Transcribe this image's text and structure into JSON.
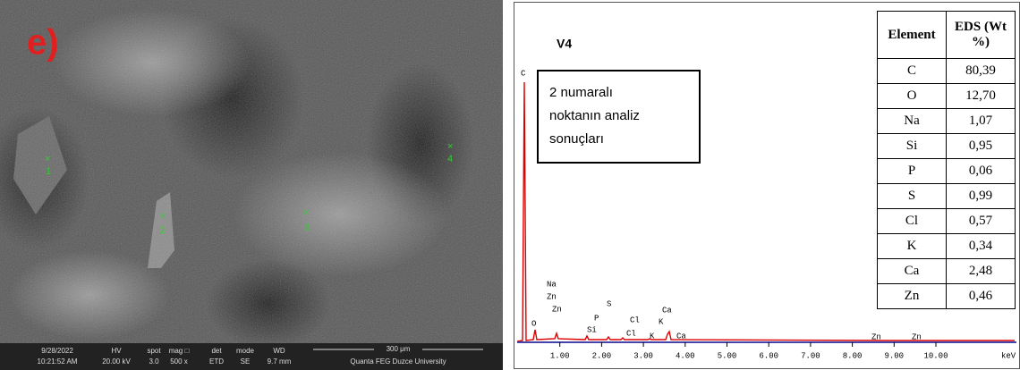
{
  "sem": {
    "panel_label": "e)",
    "points": [
      "1",
      "2",
      "3",
      "4"
    ],
    "info": {
      "date": "9/28/2022",
      "time": "10:21:52 AM",
      "hv": [
        "HV",
        "20.00 kV"
      ],
      "spot": [
        "spot",
        "3.0"
      ],
      "mag": [
        "mag □",
        "500 x"
      ],
      "det": [
        "det",
        "ETD"
      ],
      "mode": [
        "mode",
        "SE"
      ],
      "wd": [
        "WD",
        "9.7 mm"
      ],
      "scale": "300 μm",
      "lab": "Quanta FEG Duzce University"
    }
  },
  "eds": {
    "sample": "V4",
    "note": [
      "2 numaralı",
      "noktanın analiz",
      "sonuçları"
    ],
    "peak_labels": [
      "C",
      "O",
      "Na",
      "Zn",
      "Zn",
      "Si",
      "P",
      "S",
      "Cl",
      "Cl",
      "K",
      "Ca",
      "K",
      "Ca",
      "Zn",
      "Zn"
    ],
    "xticks": [
      {
        "value": 1,
        "label": "1.00"
      },
      {
        "value": 2,
        "label": "2.00"
      },
      {
        "value": 3,
        "label": "3.00"
      },
      {
        "value": 4,
        "label": "4.00"
      },
      {
        "value": 5,
        "label": "5.00"
      },
      {
        "value": 6,
        "label": "6.00"
      },
      {
        "value": 7,
        "label": "7.00"
      },
      {
        "value": 8,
        "label": "8.00"
      },
      {
        "value": 9,
        "label": "9.00"
      },
      {
        "value": 10,
        "label": "10.00"
      }
    ],
    "unit": "keV",
    "table": {
      "header": [
        "Element",
        "EDS (Wt %)"
      ],
      "rows": [
        [
          "C",
          "80,39"
        ],
        [
          "O",
          "12,70"
        ],
        [
          "Na",
          "1,07"
        ],
        [
          "Si",
          "0,95"
        ],
        [
          "P",
          "0,06"
        ],
        [
          "S",
          "0,99"
        ],
        [
          "Cl",
          "0,57"
        ],
        [
          "K",
          "0,34"
        ],
        [
          "Ca",
          "2,48"
        ],
        [
          "Zn",
          "0,46"
        ]
      ]
    }
  }
}
